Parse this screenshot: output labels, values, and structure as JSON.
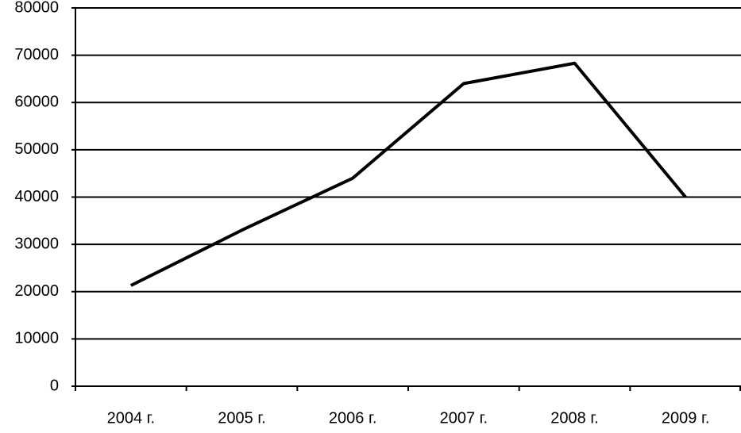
{
  "chart_data": {
    "type": "line",
    "categories": [
      "2004 г.",
      "2005 г.",
      "2006 г.",
      "2007 г.",
      "2008 г.",
      "2009 г."
    ],
    "series": [
      {
        "color": "#000000",
        "values": [
          21300,
          33000,
          44000,
          64000,
          68300,
          40000
        ]
      }
    ],
    "ylim": [
      0,
      80000
    ],
    "yticks": [
      0,
      10000,
      20000,
      30000,
      40000,
      50000,
      60000,
      70000,
      80000
    ],
    "grid": true
  }
}
